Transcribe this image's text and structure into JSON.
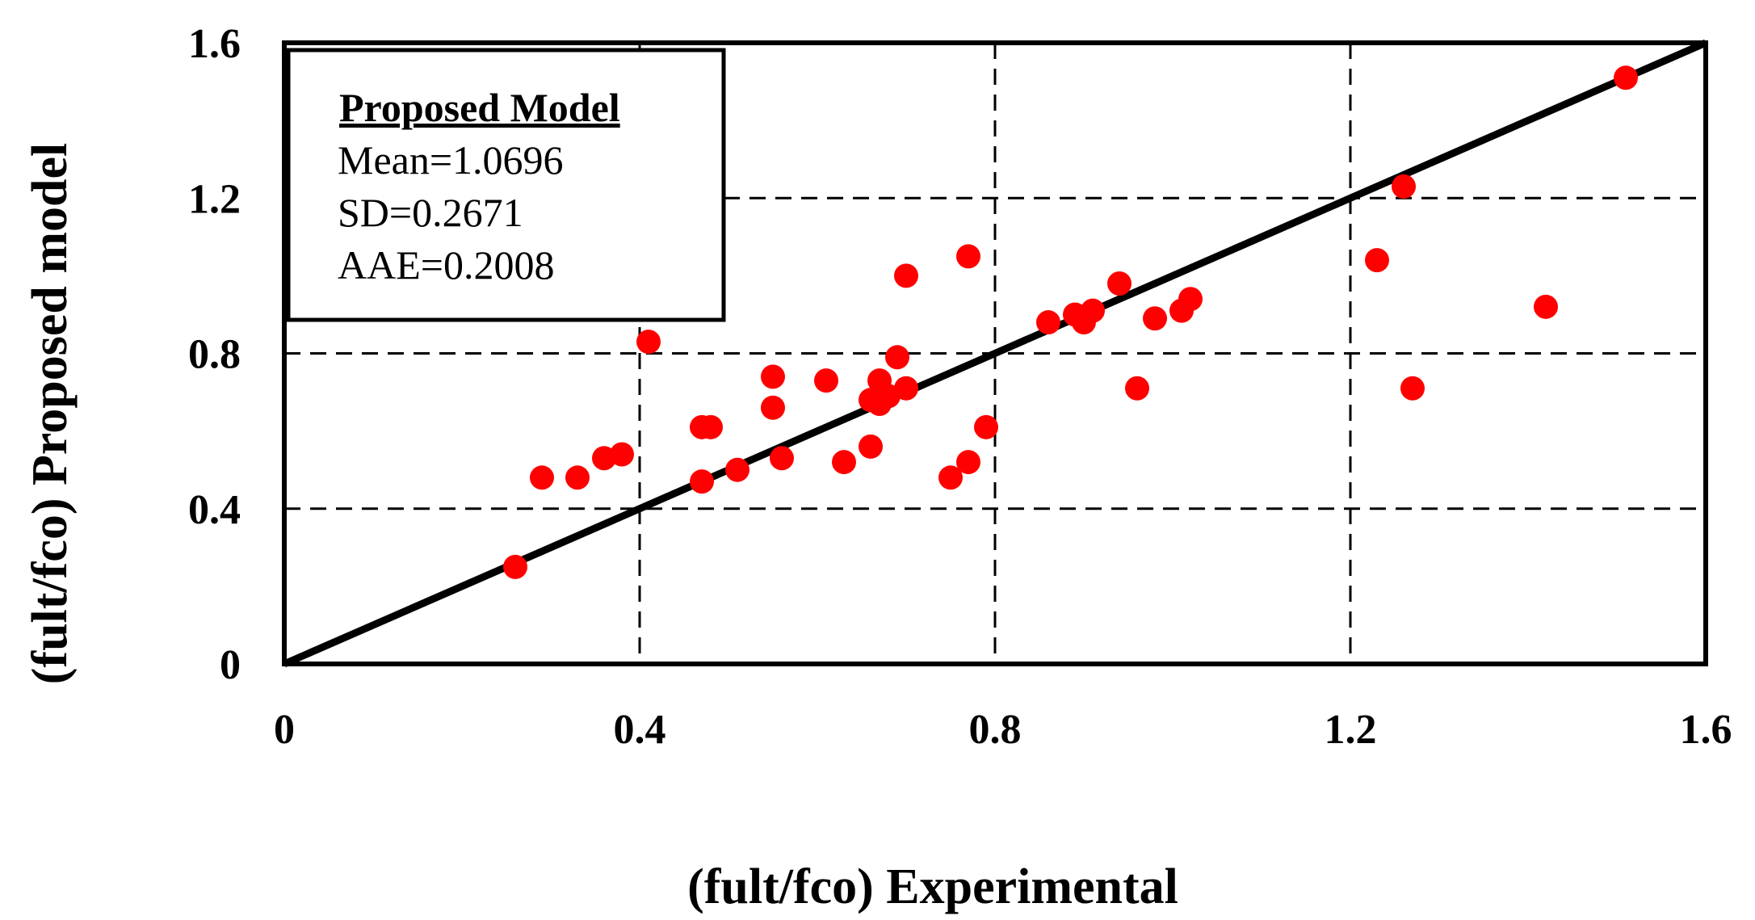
{
  "chart_data": {
    "type": "scatter",
    "title": "",
    "xlabel": "(fult/fco) Experimental",
    "ylabel": "(fult/fco) Proposed model",
    "xlim": [
      0,
      1.6
    ],
    "ylim": [
      0,
      1.6
    ],
    "xticks": [
      0,
      0.4,
      0.8,
      1.2,
      1.6
    ],
    "xtick_labels": [
      "0",
      "0.4",
      "0.8",
      "1.2",
      "1.6"
    ],
    "yticks": [
      0,
      0.4,
      0.8,
      1.2,
      1.6
    ],
    "ytick_labels": [
      "0",
      "0.4",
      "0.8",
      "1.2",
      "1.6"
    ],
    "grid": true,
    "grid_style": "dashed",
    "reference_line": {
      "name": "1:1 line",
      "x": [
        0,
        1.6
      ],
      "y": [
        0,
        1.6
      ],
      "color": "#000000"
    },
    "marker_color": "#ff0000",
    "legend": {
      "placement": "top-left",
      "title": "Proposed Model",
      "lines": [
        "Mean=1.0696",
        "SD=0.2671",
        "AAE=0.2008"
      ]
    },
    "series": [
      {
        "name": "Proposed Model",
        "points": [
          [
            0.26,
            0.25
          ],
          [
            0.29,
            0.48
          ],
          [
            0.33,
            0.48
          ],
          [
            0.36,
            0.53
          ],
          [
            0.38,
            0.54
          ],
          [
            0.41,
            0.83
          ],
          [
            0.47,
            0.61
          ],
          [
            0.48,
            0.61
          ],
          [
            0.47,
            0.47
          ],
          [
            0.51,
            0.5
          ],
          [
            0.55,
            0.74
          ],
          [
            0.55,
            0.66
          ],
          [
            0.56,
            0.53
          ],
          [
            0.61,
            0.73
          ],
          [
            0.63,
            0.52
          ],
          [
            0.66,
            0.56
          ],
          [
            0.66,
            0.68
          ],
          [
            0.67,
            0.73
          ],
          [
            0.67,
            0.67
          ],
          [
            0.68,
            0.69
          ],
          [
            0.69,
            0.79
          ],
          [
            0.7,
            0.71
          ],
          [
            0.7,
            1.0
          ],
          [
            0.75,
            0.48
          ],
          [
            0.77,
            0.52
          ],
          [
            0.77,
            1.05
          ],
          [
            0.79,
            0.61
          ],
          [
            0.86,
            0.88
          ],
          [
            0.89,
            0.9
          ],
          [
            0.9,
            0.88
          ],
          [
            0.91,
            0.91
          ],
          [
            0.94,
            0.98
          ],
          [
            0.96,
            0.71
          ],
          [
            0.98,
            0.89
          ],
          [
            1.01,
            0.91
          ],
          [
            1.02,
            0.94
          ],
          [
            1.23,
            1.04
          ],
          [
            1.26,
            1.23
          ],
          [
            1.27,
            0.71
          ],
          [
            1.42,
            0.92
          ],
          [
            1.51,
            1.51
          ]
        ]
      }
    ]
  }
}
